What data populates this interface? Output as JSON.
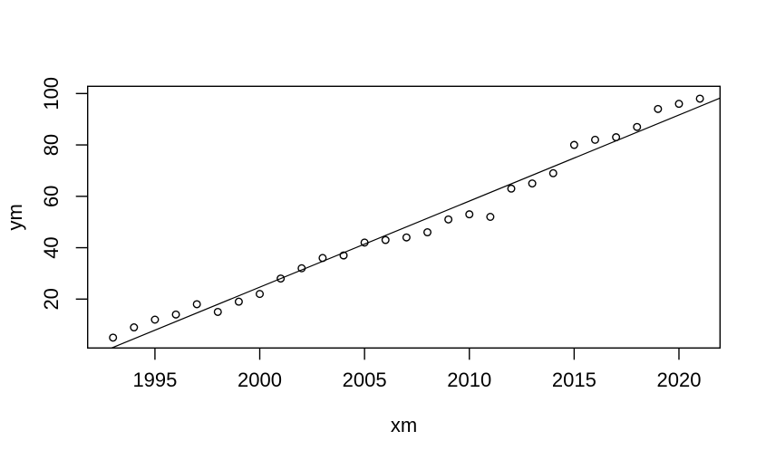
{
  "figure": {
    "background_color": "#ffffff",
    "foreground_color": "#000000"
  },
  "chart_data": {
    "type": "scatter",
    "title": "",
    "xlabel": "xm",
    "ylabel": "ym",
    "x": [
      1993,
      1994,
      1995,
      1996,
      1997,
      1998,
      1999,
      2000,
      2001,
      2002,
      2003,
      2004,
      2005,
      2006,
      2007,
      2008,
      2009,
      2010,
      2011,
      2012,
      2013,
      2014,
      2015,
      2016,
      2017,
      2018,
      2019,
      2020,
      2021
    ],
    "y": [
      5,
      9,
      12,
      14,
      18,
      15,
      19,
      22,
      28,
      32,
      36,
      37,
      42,
      43,
      44,
      46,
      51,
      53,
      52,
      63,
      65,
      69,
      80,
      82,
      83,
      87,
      94,
      96,
      98
    ],
    "x_ticks": [
      1995,
      2000,
      2005,
      2010,
      2015,
      2020
    ],
    "y_ticks": [
      20,
      40,
      60,
      80,
      100
    ],
    "xlim": [
      1991.79,
      2021.96
    ],
    "ylim": [
      0.97,
      102.82
    ],
    "grid": false,
    "legend": null,
    "marker": "open-circle",
    "marker_color": "#000000",
    "line_color": "#000000",
    "trendline": {
      "x1": 1992.93,
      "y1": 0.97,
      "x2": 2021.96,
      "y2": 98.22
    }
  }
}
